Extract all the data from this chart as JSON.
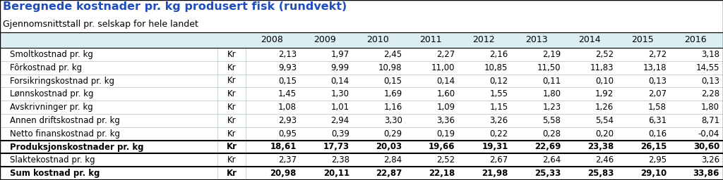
{
  "title": "Beregnede kostnader pr. kg produsert fisk (rundvekt)",
  "subtitle": "Gjennomsnittstall pr. selskap for hele landet",
  "years": [
    "2008",
    "2009",
    "2010",
    "2011",
    "2012",
    "2013",
    "2014",
    "2015",
    "2016"
  ],
  "rows": [
    {
      "label": "Smoltkostnad pr. kg",
      "unit": "Kr",
      "values": [
        "2,13",
        "1,97",
        "2,45",
        "2,27",
        "2,16",
        "2,19",
        "2,52",
        "2,72",
        "3,18"
      ],
      "bold": false,
      "is_total": false
    },
    {
      "label": "Fôrkostnad pr. kg",
      "unit": "Kr",
      "values": [
        "9,93",
        "9,99",
        "10,98",
        "11,00",
        "10,85",
        "11,50",
        "11,83",
        "13,18",
        "14,55"
      ],
      "bold": false,
      "is_total": false
    },
    {
      "label": "Forsikringskostnad pr. kg",
      "unit": "Kr",
      "values": [
        "0,15",
        "0,14",
        "0,15",
        "0,14",
        "0,12",
        "0,11",
        "0,10",
        "0,13",
        "0,13"
      ],
      "bold": false,
      "is_total": false
    },
    {
      "label": "Lønnskostnad pr. kg",
      "unit": "Kr",
      "values": [
        "1,45",
        "1,30",
        "1,69",
        "1,60",
        "1,55",
        "1,80",
        "1,92",
        "2,07",
        "2,28"
      ],
      "bold": false,
      "is_total": false
    },
    {
      "label": "Avskrivninger pr. kg",
      "unit": "Kr",
      "values": [
        "1,08",
        "1,01",
        "1,16",
        "1,09",
        "1,15",
        "1,23",
        "1,26",
        "1,58",
        "1,80"
      ],
      "bold": false,
      "is_total": false
    },
    {
      "label": "Annen driftskostnad pr. kg",
      "unit": "Kr",
      "values": [
        "2,93",
        "2,94",
        "3,30",
        "3,36",
        "3,26",
        "5,58",
        "5,54",
        "6,31",
        "8,71"
      ],
      "bold": false,
      "is_total": false
    },
    {
      "label": "Netto finanskostnad pr. kg",
      "unit": "Kr",
      "values": [
        "0,95",
        "0,39",
        "0,29",
        "0,19",
        "0,22",
        "0,28",
        "0,20",
        "0,16",
        "-0,04"
      ],
      "bold": false,
      "is_total": false
    },
    {
      "label": "Produksjonskostnader pr. kg",
      "unit": "Kr",
      "values": [
        "18,61",
        "17,73",
        "20,03",
        "19,66",
        "19,31",
        "22,69",
        "23,38",
        "26,15",
        "30,60"
      ],
      "bold": true,
      "is_total": true
    },
    {
      "label": "Slaktekostnad pr. kg",
      "unit": "Kr",
      "values": [
        "2,37",
        "2,38",
        "2,84",
        "2,52",
        "2,67",
        "2,64",
        "2,46",
        "2,95",
        "3,26"
      ],
      "bold": false,
      "is_total": false
    },
    {
      "label": "Sum kostnad pr. kg",
      "unit": "Kr",
      "values": [
        "20,98",
        "20,11",
        "22,87",
        "22,18",
        "21,98",
        "25,33",
        "25,83",
        "29,10",
        "33,86"
      ],
      "bold": true,
      "is_total": true
    }
  ],
  "header_bg": "#daeef3",
  "border_color": "#000000",
  "light_line_color": "#b0c4cc",
  "title_color": "#1f4dbd",
  "text_color": "#000000",
  "fig_bg": "#ffffff",
  "title_fontsize": 11.5,
  "subtitle_fontsize": 9.0,
  "header_fontsize": 9.0,
  "data_fontsize": 8.5
}
